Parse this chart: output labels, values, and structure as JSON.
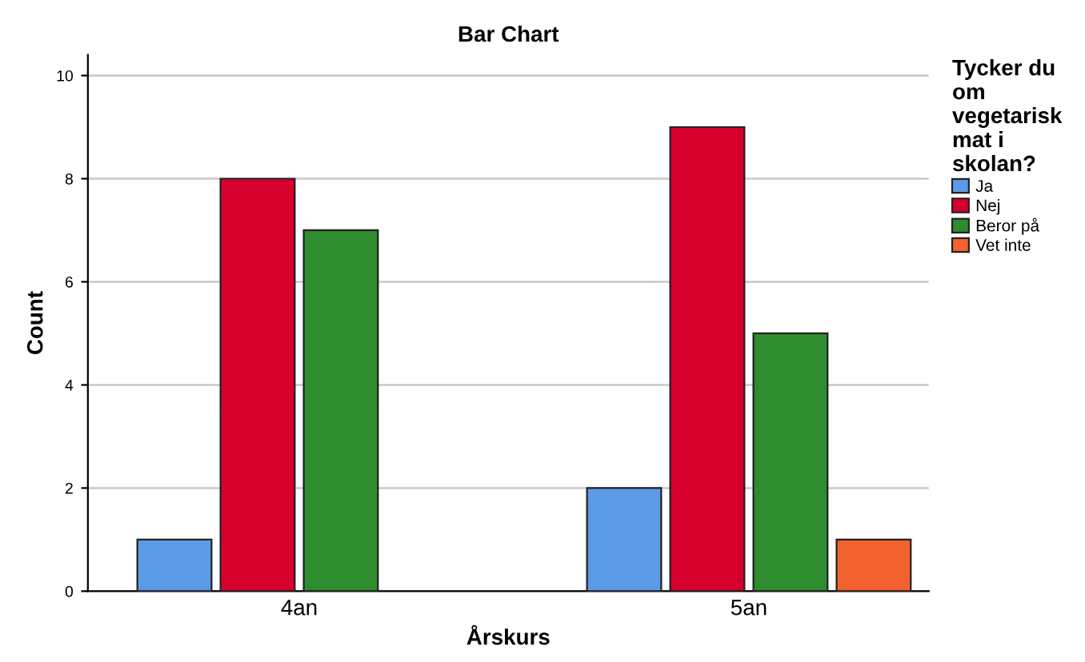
{
  "chart_data": {
    "type": "bar",
    "title": "Bar Chart",
    "xlabel": "Årskurs",
    "ylabel": "Count",
    "legend_title": "Tycker du om vegetarisk mat i skolan?",
    "categories": [
      "4an",
      "5an"
    ],
    "series": [
      {
        "name": "Ja",
        "color": "#5b9be6",
        "values": [
          1,
          2
        ]
      },
      {
        "name": "Nej",
        "color": "#d6002f",
        "values": [
          8,
          9
        ]
      },
      {
        "name": "Beror på",
        "color": "#2e8b2e",
        "values": [
          7,
          5
        ]
      },
      {
        "name": "Vet inte",
        "color": "#f2612e",
        "values": [
          null,
          1
        ]
      }
    ],
    "ylim": [
      0,
      10.4
    ],
    "yticks": [
      0,
      2,
      4,
      6,
      8,
      10
    ],
    "grid": "y",
    "legend": "right"
  }
}
